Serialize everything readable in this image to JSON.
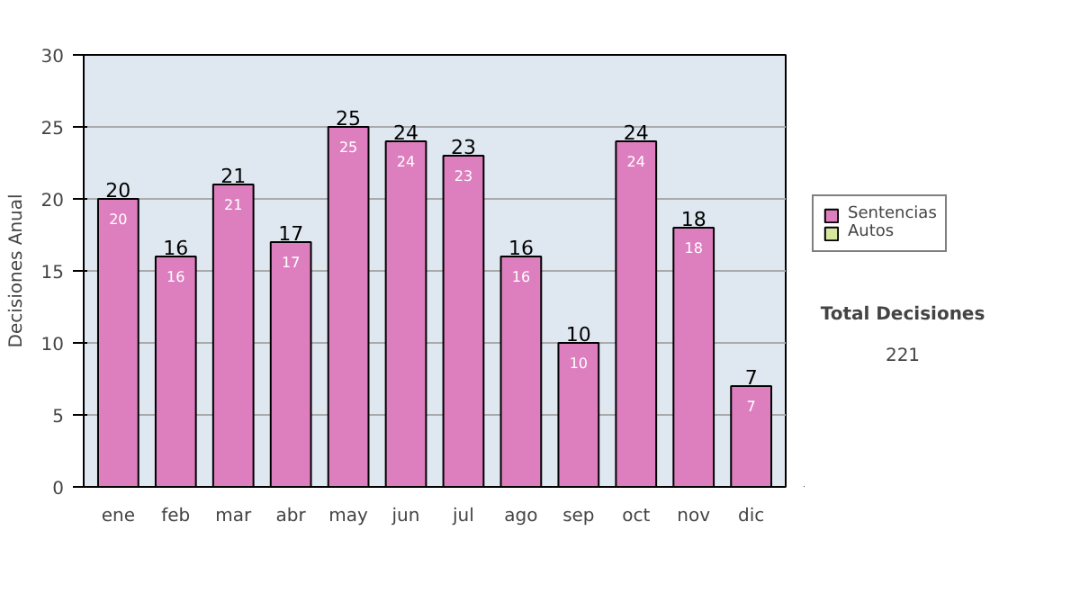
{
  "chart_data": {
    "type": "bar",
    "ylabel": "Decisiones Anual",
    "categories": [
      "ene",
      "feb",
      "mar",
      "abr",
      "may",
      "jun",
      "jul",
      "ago",
      "sep",
      "oct",
      "nov",
      "dic"
    ],
    "series": [
      {
        "name": "Sentencias",
        "color": "#dd7fbf",
        "values": [
          20,
          16,
          21,
          17,
          25,
          24,
          23,
          16,
          10,
          24,
          18,
          7
        ],
        "value_labels": [
          "20",
          "16",
          "21",
          "17",
          "25",
          "24",
          "23",
          "16",
          "10",
          "24",
          "18",
          "7"
        ]
      },
      {
        "name": "Autos",
        "color": "#d6e8a0",
        "values": [
          null,
          null,
          null,
          null,
          null,
          null,
          null,
          null,
          null,
          null,
          null,
          null
        ]
      }
    ],
    "stacked": true,
    "totals": [
      "20",
      "16",
      "21",
      "17",
      "25",
      "24",
      "23",
      "16",
      "10",
      "24",
      "18",
      "7"
    ],
    "ylim": [
      0,
      30
    ],
    "yticks": [
      0,
      5,
      10,
      15,
      20,
      25,
      30
    ],
    "grid": "y",
    "legend": "right",
    "annotations": [
      "Total Decisiones",
      "221"
    ]
  }
}
